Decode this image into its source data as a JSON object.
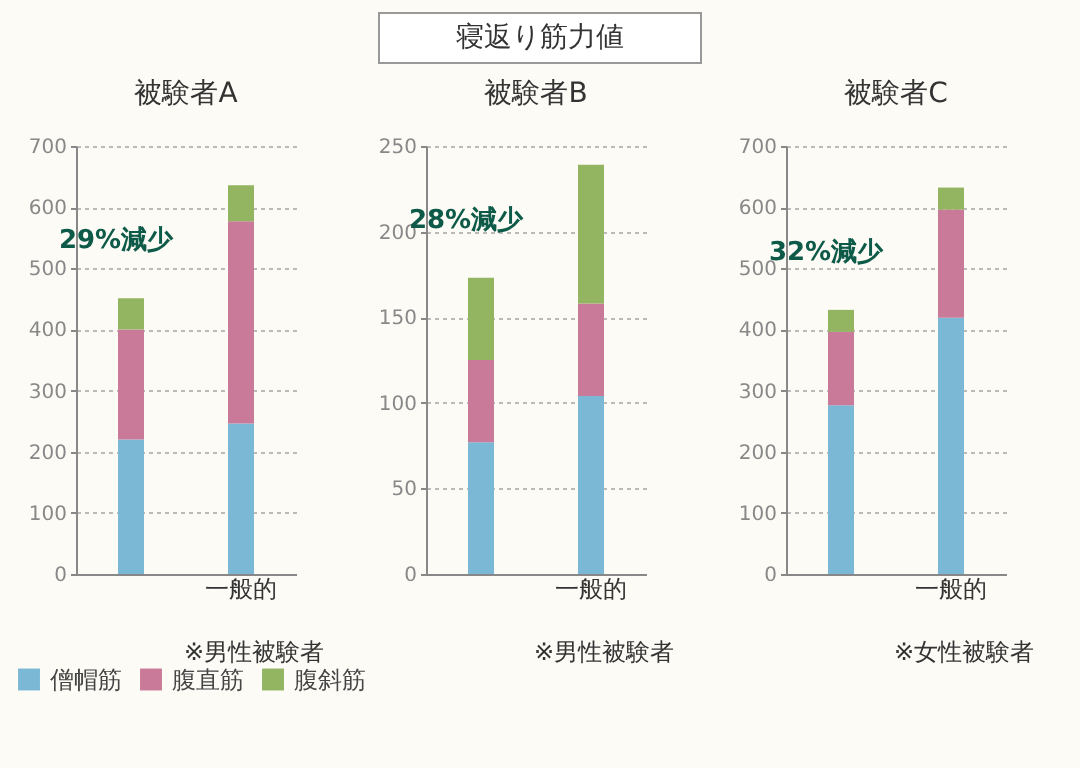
{
  "chart_data": [
    {
      "type": "other",
      "title": "寝返り筋力値"
    },
    {
      "type": "bar",
      "title": "被験者A",
      "categories": [
        null,
        "一般的"
      ],
      "stacked": true,
      "ylim": [
        0,
        700
      ],
      "yticks": [
        0,
        100,
        200,
        300,
        400,
        500,
        600,
        700
      ],
      "grid": "y",
      "legend": "bottom left",
      "series": [
        {
          "name": "僧帽筋",
          "color": "#7ab8d6",
          "values": [
            220,
            246
          ]
        },
        {
          "name": "腹直筋",
          "color": "#c97a98",
          "values": [
            180,
            331
          ]
        },
        {
          "name": "腹斜筋",
          "color": "#93b562",
          "values": [
            51,
            59
          ]
        }
      ],
      "annotations": [
        "29%減少",
        "※男性被験者"
      ]
    },
    {
      "type": "bar",
      "title": "被験者B",
      "categories": [
        null,
        "一般的"
      ],
      "stacked": true,
      "ylim": [
        0,
        250
      ],
      "yticks": [
        0,
        50,
        100,
        150,
        200,
        250
      ],
      "grid": "y",
      "series": [
        {
          "color": "#7ab8d6",
          "values": [
            77,
            104
          ]
        },
        {
          "color": "#c97a98",
          "values": [
            48,
            54
          ]
        },
        {
          "color": "#93b562",
          "values": [
            48,
            81
          ]
        }
      ],
      "annotations": [
        "28%減少",
        "※男性被験者"
      ]
    },
    {
      "type": "bar",
      "title": "被験者C",
      "categories": [
        null,
        "一般的"
      ],
      "stacked": true,
      "ylim": [
        0,
        700
      ],
      "yticks": [
        0,
        100,
        200,
        300,
        400,
        500,
        600,
        700
      ],
      "grid": "y",
      "series": [
        {
          "color": "#7ab8d6",
          "values": [
            276,
            419
          ]
        },
        {
          "color": "#c97a98",
          "values": [
            120,
            177
          ]
        },
        {
          "color": "#93b562",
          "values": [
            36,
            36
          ]
        }
      ],
      "annotations": [
        "32%減少",
        "※女性被験者"
      ]
    }
  ]
}
